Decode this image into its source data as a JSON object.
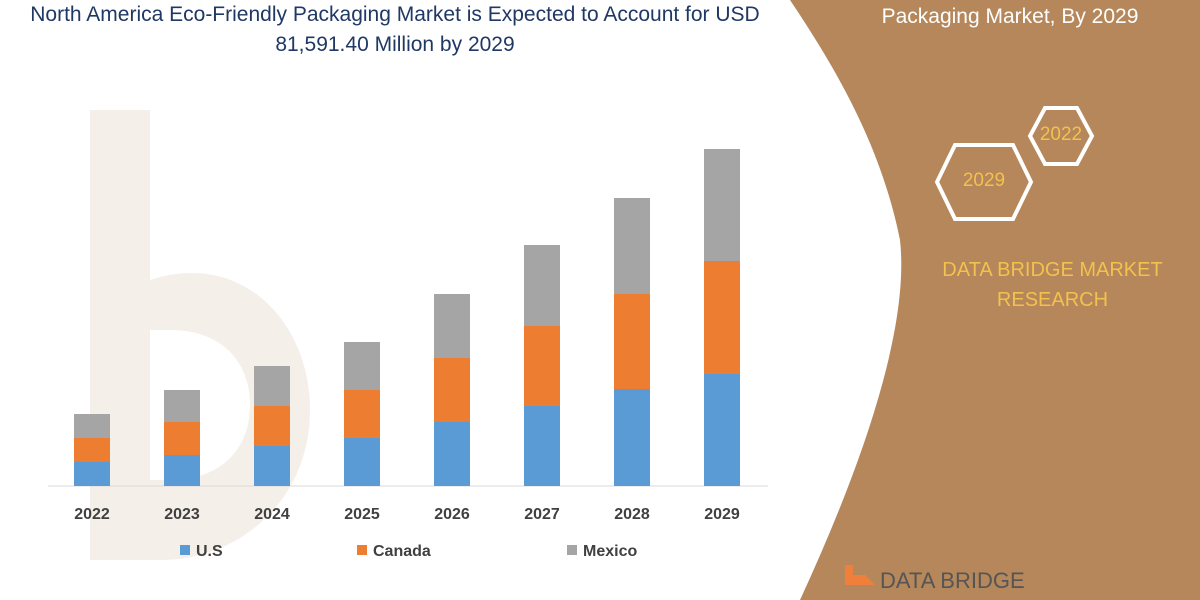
{
  "title": "North America Eco-Friendly Packaging Market is Expected to Account for USD 81,591.40 Million by 2029",
  "side_panel": {
    "title": "Packaging Market, By 2029",
    "hex_a": "2022",
    "hex_b": "2029",
    "brand": "DATA BRIDGE MARKET RESEARCH",
    "logo_text": "DATA BRIDGE",
    "color": "#b5875a"
  },
  "chart_data": {
    "type": "bar",
    "stacked": true,
    "grid": false,
    "legend": "bottom",
    "categories": [
      "2022",
      "2023",
      "2024",
      "2025",
      "2026",
      "2027",
      "2028",
      "2029"
    ],
    "series": [
      {
        "name": "U.S",
        "color": "#5b9bd5",
        "values": [
          24,
          31,
          40,
          48,
          64,
          80,
          97,
          112
        ]
      },
      {
        "name": "Canada",
        "color": "#ed7d31",
        "values": [
          24,
          33,
          40,
          48,
          64,
          80,
          95,
          113
        ]
      },
      {
        "name": "Mexico",
        "color": "#a5a5a5",
        "values": [
          24,
          32,
          40,
          48,
          64,
          81,
          96,
          112
        ]
      }
    ],
    "note": "relative values; no y-axis shown"
  }
}
